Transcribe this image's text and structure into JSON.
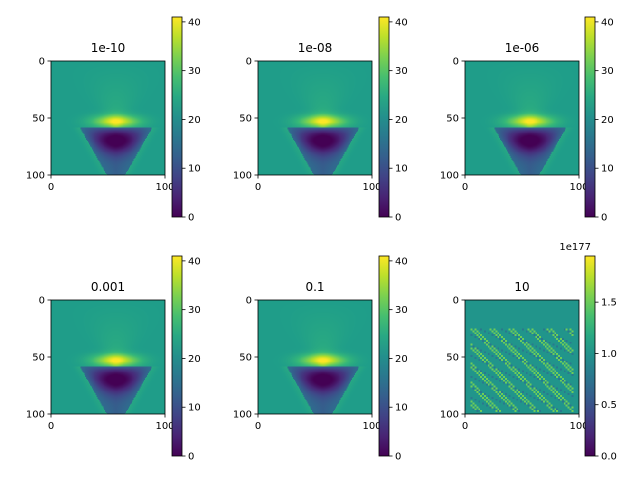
{
  "figure": {
    "background": "#ffffff",
    "colormap": "viridis"
  },
  "chart_data": [
    {
      "type": "heatmap",
      "title": "1e-10",
      "field": "smooth",
      "x_ticks": [
        "0",
        "100"
      ],
      "y_ticks": [
        "0",
        "50",
        "100"
      ],
      "colorbar": {
        "min": 0,
        "max": 41,
        "ticks": [
          "0",
          "10",
          "20",
          "30",
          "40"
        ],
        "offset_label": ""
      },
      "grid": false
    },
    {
      "type": "heatmap",
      "title": "1e-08",
      "field": "smooth",
      "x_ticks": [
        "0",
        "100"
      ],
      "y_ticks": [
        "0",
        "50",
        "100"
      ],
      "colorbar": {
        "min": 0,
        "max": 41,
        "ticks": [
          "0",
          "10",
          "20",
          "30",
          "40"
        ],
        "offset_label": ""
      },
      "grid": false
    },
    {
      "type": "heatmap",
      "title": "1e-06",
      "field": "smooth",
      "x_ticks": [
        "0",
        "100"
      ],
      "y_ticks": [
        "0",
        "50",
        "100"
      ],
      "colorbar": {
        "min": 0,
        "max": 41,
        "ticks": [
          "0",
          "10",
          "20",
          "30",
          "40"
        ],
        "offset_label": ""
      },
      "grid": false
    },
    {
      "type": "heatmap",
      "title": "0.001",
      "field": "smooth",
      "x_ticks": [
        "0",
        "100"
      ],
      "y_ticks": [
        "0",
        "50",
        "100"
      ],
      "colorbar": {
        "min": 0,
        "max": 41,
        "ticks": [
          "0",
          "10",
          "20",
          "30",
          "40"
        ],
        "offset_label": ""
      },
      "grid": false
    },
    {
      "type": "heatmap",
      "title": "0.1",
      "field": "smooth",
      "x_ticks": [
        "0",
        "100"
      ],
      "y_ticks": [
        "0",
        "50",
        "100"
      ],
      "colorbar": {
        "min": 0,
        "max": 41,
        "ticks": [
          "0",
          "10",
          "20",
          "30",
          "40"
        ],
        "offset_label": ""
      },
      "grid": false
    },
    {
      "type": "heatmap",
      "title": "10",
      "field": "checker",
      "x_ticks": [
        "0",
        "100"
      ],
      "y_ticks": [
        "0",
        "50",
        "100"
      ],
      "colorbar": {
        "min": 0,
        "max": 1.95,
        "ticks": [
          "0.0",
          "0.5",
          "1.0",
          "1.5"
        ],
        "offset_label": "1e177"
      },
      "grid": false
    }
  ]
}
